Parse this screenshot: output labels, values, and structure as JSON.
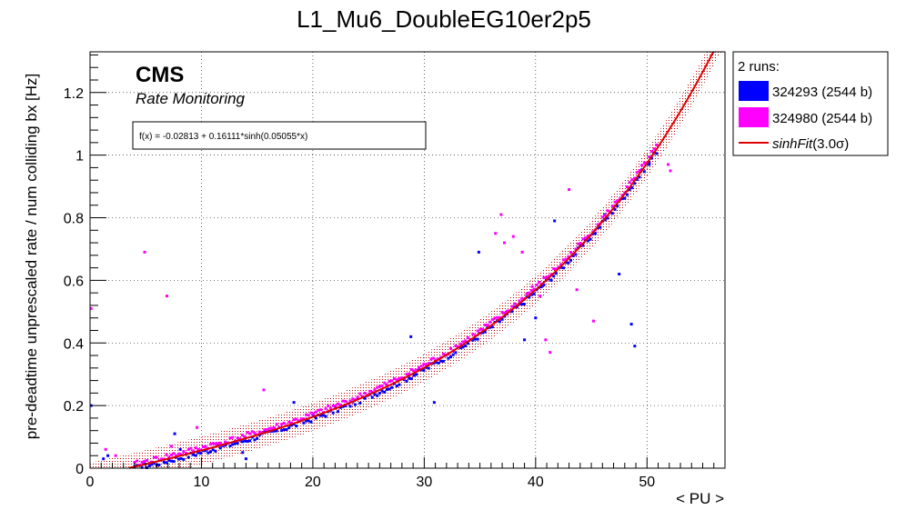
{
  "chart_data": {
    "type": "scatter",
    "title": "L1_Mu6_DoubleEG10er2p5",
    "xlabel": "< PU >",
    "ylabel": "pre-deadtime unprescaled rate / num colliding bx [Hz]",
    "xlim": [
      0,
      57
    ],
    "ylim": [
      0,
      1.33
    ],
    "xticks": [
      0,
      10,
      20,
      30,
      40,
      50
    ],
    "xtick_labels": [
      "0",
      "10",
      "20",
      "30",
      "40",
      "50"
    ],
    "yticks": [
      0,
      0.2,
      0.4,
      0.6,
      0.8,
      1.0,
      1.2
    ],
    "ytick_labels": [
      "0",
      "0.2",
      "0.4",
      "0.6",
      "0.8",
      "1",
      "1.2"
    ],
    "grid": true,
    "experiment_label": "CMS",
    "sub_label": "Rate Monitoring",
    "fit_formula": "f(x) = -0.02813 + 0.16111*sinh(0.05055*x)",
    "fit": {
      "name": "sinhFit",
      "a": -0.02813,
      "b": 0.16111,
      "c": 0.05055,
      "band_sigma": 3.0,
      "band_halfwidth": 0.045,
      "color": "#dd0000"
    },
    "legend": {
      "header": "2 runs:",
      "position": "right-outside",
      "entries": [
        {
          "label": "324293 (2544 b)",
          "color": "#0000ff",
          "kind": "box"
        },
        {
          "label": "324980 (2544 b)",
          "color": "#ff00ff",
          "kind": "box"
        },
        {
          "label_main": "sinhFit",
          "label_sigma": "(3.0σ)",
          "color": "#dd0000",
          "kind": "line"
        }
      ]
    },
    "series": [
      {
        "name": "324293 (2544 b)",
        "color": "#0000ff",
        "band_range": [
          4,
          51
        ],
        "outliers": [
          [
            0.1,
            0.2
          ],
          [
            1.2,
            0.03
          ],
          [
            1.6,
            0.04
          ],
          [
            7.6,
            0.11
          ],
          [
            8.1,
            0.06
          ],
          [
            13.7,
            0.05
          ],
          [
            14.0,
            0.03
          ],
          [
            18.3,
            0.21
          ],
          [
            28.8,
            0.42
          ],
          [
            30.9,
            0.21
          ],
          [
            34.9,
            0.69
          ],
          [
            39.0,
            0.41
          ],
          [
            40.0,
            0.48
          ],
          [
            41.7,
            0.79
          ],
          [
            46.2,
            0.81
          ],
          [
            47.5,
            0.62
          ],
          [
            48.6,
            0.46
          ],
          [
            48.9,
            0.39
          ],
          [
            50.2,
            0.97
          ]
        ]
      },
      {
        "name": "324980 (2544 b)",
        "color": "#ff00ff",
        "band_range": [
          4,
          51
        ],
        "outliers": [
          [
            0.1,
            0.51
          ],
          [
            1.4,
            0.06
          ],
          [
            2.3,
            0.04
          ],
          [
            4.9,
            0.69
          ],
          [
            6.9,
            0.55
          ],
          [
            7.3,
            0.07
          ],
          [
            9.6,
            0.13
          ],
          [
            15.6,
            0.25
          ],
          [
            36.4,
            0.75
          ],
          [
            36.9,
            0.81
          ],
          [
            37.2,
            0.72
          ],
          [
            38.0,
            0.74
          ],
          [
            38.8,
            0.69
          ],
          [
            39.7,
            0.58
          ],
          [
            40.4,
            0.55
          ],
          [
            40.9,
            0.41
          ],
          [
            41.3,
            0.37
          ],
          [
            43.0,
            0.89
          ],
          [
            43.7,
            0.57
          ],
          [
            45.2,
            0.47
          ],
          [
            51.9,
            0.97
          ],
          [
            52.1,
            0.95
          ]
        ]
      }
    ]
  }
}
